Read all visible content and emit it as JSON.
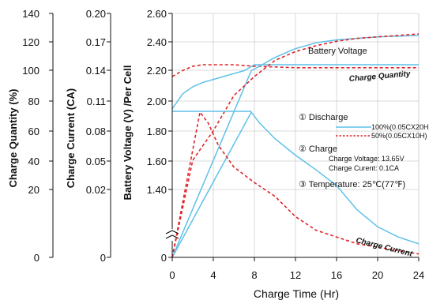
{
  "chart_data": {
    "type": "line",
    "xlabel": "Charge Time (Hr)",
    "x_ticks": [
      "0",
      "4",
      "8",
      "12",
      "16",
      "20",
      "24"
    ],
    "xlim": [
      0,
      24
    ],
    "axes": {
      "charge_quantity": {
        "label": "Charge Quantity (%)",
        "ticks": [
          "140",
          "120",
          "100",
          "80",
          "60",
          "40",
          "20",
          "0"
        ]
      },
      "charge_current": {
        "label": "Charge Current (CA)",
        "ticks": [
          "0.20",
          "0.17",
          "0.14",
          "0.11",
          "0.08",
          "0.05",
          "0.02",
          "0"
        ]
      },
      "battery_voltage": {
        "label": "Battery Voltage (V) /Per Cell",
        "ticks": [
          "2.60",
          "2.40",
          "2.20",
          "2.00",
          "1.80",
          "1.60",
          "1.40",
          "0"
        ],
        "ylim": [
          1.2,
          2.6
        ]
      }
    },
    "curve_labels": {
      "battery_voltage": "Battery Voltage",
      "charge_quantity": "Charge Quantity",
      "charge_current": "Charge Current"
    },
    "legend": {
      "discharge_title": "① Discharge",
      "discharge_100": "100%(0.05CX20H)",
      "discharge_50": "50%(0.05CX10H)",
      "charge_title": "② Charge",
      "charge_voltage": "Charge Voltage: 13.65V",
      "charge_current": "Charge Curent:  0.1CA",
      "temperature": "③ Temperature: 25℃(77℉)"
    },
    "series": [
      {
        "name": "100%(0.05CX20H)",
        "curve": "battery_voltage",
        "axis": "battery_voltage",
        "style": "solid",
        "x": [
          0,
          1,
          2,
          3,
          4,
          5,
          6,
          7,
          8,
          12,
          16,
          20,
          24
        ],
        "y": [
          1.95,
          2.05,
          2.1,
          2.13,
          2.15,
          2.17,
          2.19,
          2.21,
          2.25,
          2.25,
          2.25,
          2.25,
          2.25
        ]
      },
      {
        "name": "50%(0.05CX10H)",
        "curve": "battery_voltage",
        "axis": "battery_voltage",
        "style": "dashed",
        "x": [
          0,
          1,
          2,
          3,
          4,
          6,
          8,
          12,
          16,
          20,
          24
        ],
        "y": [
          2.17,
          2.21,
          2.24,
          2.25,
          2.25,
          2.25,
          2.24,
          2.23,
          2.23,
          2.23,
          2.23
        ]
      },
      {
        "name": "100%(0.05CX20H)",
        "curve": "charge_quantity",
        "axis": "charge_quantity",
        "style": "solid",
        "x": [
          0,
          7.7,
          8.5,
          10,
          12,
          14,
          16,
          18,
          20,
          22,
          24
        ],
        "y": [
          0,
          101,
          104,
          110,
          116,
          120,
          122,
          123,
          124,
          124.5,
          125
        ]
      },
      {
        "name": "50%(0.05CX10H)",
        "curve": "charge_quantity",
        "axis": "charge_quantity",
        "style": "dashed",
        "x": [
          0,
          2,
          4,
          6,
          8,
          10,
          12,
          14,
          16,
          18,
          20,
          22,
          24
        ],
        "y": [
          0,
          40,
          60,
          84,
          97,
          108,
          114,
          118,
          121,
          123,
          124,
          125,
          126
        ]
      },
      {
        "name": "100%(0.05CX20H)",
        "curve": "charge_current",
        "axis": "charge_current",
        "style": "solid",
        "x": [
          0,
          7.7,
          8.5,
          10,
          12,
          14,
          16,
          18,
          20,
          22,
          24
        ],
        "y": [
          0,
          0.099,
          0.088,
          0.072,
          0.055,
          0.04,
          0.024,
          0.014,
          0.009,
          0.006,
          0.004
        ]
      },
      {
        "name": "50%(0.05CX10H)",
        "curve": "charge_current",
        "axis": "charge_current",
        "style": "dashed",
        "x": [
          0,
          2.7,
          3.5,
          4.5,
          6,
          8,
          10,
          12,
          14,
          16,
          18,
          20,
          22,
          24
        ],
        "y": [
          0,
          0.099,
          0.088,
          0.065,
          0.043,
          0.027,
          0.018,
          0.012,
          0.008,
          0.006,
          0.004,
          0.003,
          0.002,
          0.001
        ]
      }
    ],
    "colors": {
      "solid": "#5fc1e8",
      "dashed": "#e0252a",
      "axis": "#111111"
    },
    "grid": true,
    "axis_break": true
  }
}
